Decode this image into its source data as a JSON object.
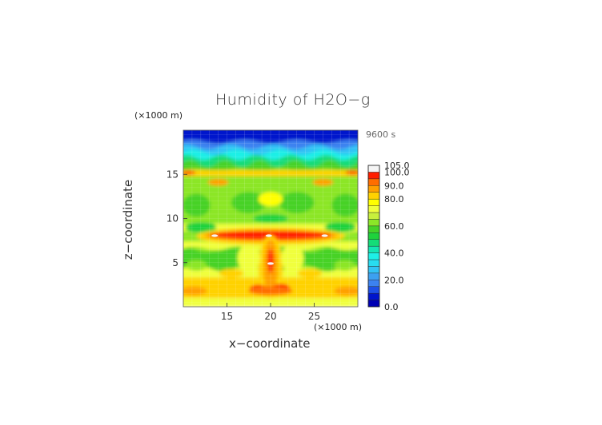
{
  "chart_data": {
    "type": "heatmap",
    "title": "Humidity of H2O−g",
    "xlabel": "x−coordinate",
    "ylabel": "z−coordinate",
    "x_unit": "(×1000 m)",
    "z_unit": "(×1000 m)",
    "time_label": "9600 s",
    "xlim": [
      10,
      30
    ],
    "ylim": [
      0,
      20
    ],
    "x_ticks": [
      15,
      20,
      25
    ],
    "y_ticks": [
      5,
      10,
      15
    ],
    "colorbar": {
      "min": 0,
      "max": 105,
      "tick_values": [
        0,
        20,
        40,
        60,
        80,
        90,
        100,
        105
      ],
      "tick_labels": [
        "0.0",
        "20.0",
        "40.0",
        "60.0",
        "80.0",
        "90.0",
        "100.0",
        "105.0"
      ],
      "bands": [
        {
          "from": 0,
          "to": 5,
          "color": "#0000b4"
        },
        {
          "from": 5,
          "to": 10,
          "color": "#0014cc"
        },
        {
          "from": 10,
          "to": 15,
          "color": "#1e50e6"
        },
        {
          "from": 15,
          "to": 20,
          "color": "#3c82f0"
        },
        {
          "from": 20,
          "to": 25,
          "color": "#3ca0f0"
        },
        {
          "from": 25,
          "to": 30,
          "color": "#32c3f5"
        },
        {
          "from": 30,
          "to": 35,
          "color": "#28dcf0"
        },
        {
          "from": 35,
          "to": 40,
          "color": "#1ef0e6"
        },
        {
          "from": 40,
          "to": 45,
          "color": "#14e6b4"
        },
        {
          "from": 45,
          "to": 50,
          "color": "#14dc78"
        },
        {
          "from": 50,
          "to": 55,
          "color": "#1ed23c"
        },
        {
          "from": 55,
          "to": 60,
          "color": "#46d228"
        },
        {
          "from": 60,
          "to": 65,
          "color": "#8ce628"
        },
        {
          "from": 65,
          "to": 70,
          "color": "#c8f03c"
        },
        {
          "from": 70,
          "to": 75,
          "color": "#f0ff3c"
        },
        {
          "from": 75,
          "to": 80,
          "color": "#ffff00"
        },
        {
          "from": 80,
          "to": 85,
          "color": "#ffd200"
        },
        {
          "from": 85,
          "to": 90,
          "color": "#ffa000"
        },
        {
          "from": 90,
          "to": 95,
          "color": "#ff6e00"
        },
        {
          "from": 95,
          "to": 100,
          "color": "#ff1e00"
        },
        {
          "from": 100,
          "to": 105,
          "color": "#f5f5f5"
        }
      ]
    },
    "field_features": [
      {
        "name": "top-dry-layer",
        "z_range": [
          18.0,
          20.0
        ],
        "value": 5
      },
      {
        "name": "cyan-layer",
        "z_range": [
          17.2,
          18.2
        ],
        "value": 35
      },
      {
        "name": "upper-green-band",
        "z_range": [
          15.6,
          17.0
        ],
        "value": 55
      },
      {
        "name": "humid-strip-15km",
        "z_range": [
          15.0,
          15.5
        ],
        "value": 85
      },
      {
        "name": "mid-level-yellow-green",
        "z_range": [
          8.5,
          14.5
        ],
        "value": 65
      },
      {
        "name": "humid-core-8km",
        "x_range": [
          13.0,
          27.0
        ],
        "z_range": [
          7.3,
          8.3
        ],
        "value": 97
      },
      {
        "name": "central-column",
        "x_range": [
          19.2,
          20.8
        ],
        "z_range": [
          1.5,
          7.0
        ],
        "value": 92
      },
      {
        "name": "lower-green-band",
        "z_range": [
          4.5,
          6.5
        ],
        "value": 55
      },
      {
        "name": "surface-layer",
        "z_range": [
          0.0,
          3.0
        ],
        "value": 85
      }
    ]
  }
}
